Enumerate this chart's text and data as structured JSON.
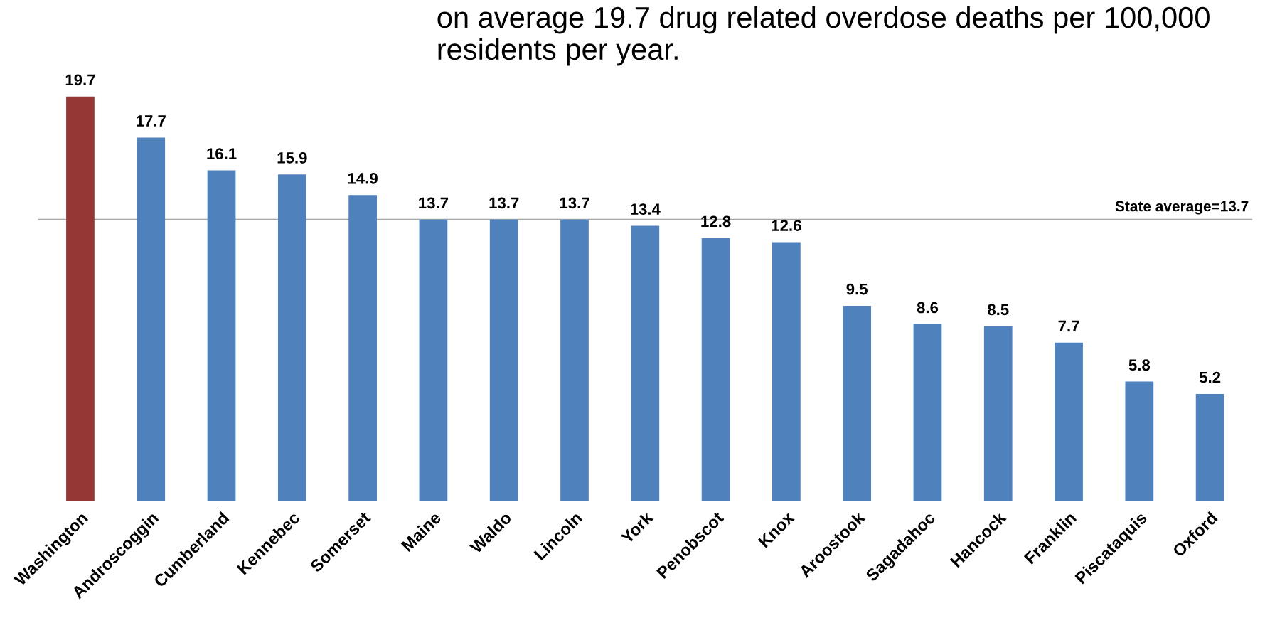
{
  "chart_data": {
    "type": "bar",
    "title": "on average 19.7 drug related overdose deaths per 100,000 residents per year.",
    "categories": [
      "Washington",
      "Androscoggin",
      "Cumberland",
      "Kennebec",
      "Somerset",
      "Maine",
      "Waldo",
      "Lincoln",
      "York",
      "Penobscot",
      "Knox",
      "Aroostook",
      "Sagadahoc",
      "Hancock",
      "Franklin",
      "Piscataquis",
      "Oxford"
    ],
    "values": [
      19.7,
      17.7,
      16.1,
      15.9,
      14.9,
      13.7,
      13.7,
      13.7,
      13.4,
      12.8,
      12.6,
      9.5,
      8.6,
      8.5,
      7.7,
      5.8,
      5.2
    ],
    "colors": [
      "#953735",
      "#4f81bd",
      "#4f81bd",
      "#4f81bd",
      "#4f81bd",
      "#4f81bd",
      "#4f81bd",
      "#4f81bd",
      "#4f81bd",
      "#4f81bd",
      "#4f81bd",
      "#4f81bd",
      "#4f81bd",
      "#4f81bd",
      "#4f81bd",
      "#4f81bd",
      "#4f81bd"
    ],
    "data_labels": true,
    "grid": false,
    "legend": false,
    "ref_lines": [
      {
        "axis": "y",
        "value": 13.7,
        "label": "State average=13.7",
        "color": "#a6a6a6"
      }
    ]
  }
}
